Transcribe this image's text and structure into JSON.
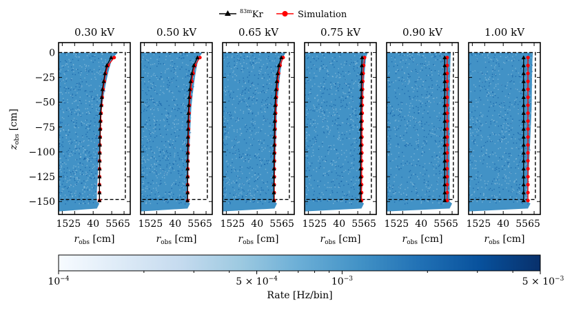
{
  "legend": {
    "items": [
      {
        "label": "83mKr",
        "label_super": "83m",
        "label_main": "Kr",
        "marker": "triangle",
        "color": "#000000"
      },
      {
        "label": "Simulation",
        "marker": "circle",
        "color": "#ff0000"
      }
    ]
  },
  "chart_data": {
    "type": "heatmap",
    "ylabel": "z_obs [cm]",
    "ylabel_main": "z",
    "ylabel_sub": "obs",
    "ylabel_unit": " [cm]",
    "xlabel": "r_obs [cm]",
    "xlabel_main": "r",
    "xlabel_sub": "obs",
    "xlabel_unit": " [cm]",
    "xticks": [
      15,
      25,
      40,
      55,
      65
    ],
    "xtick_labels": [
      "15",
      "25",
      "40",
      "55",
      "65"
    ],
    "xlim": [
      12,
      70
    ],
    "yticks": [
      0,
      -25,
      -50,
      -75,
      -100,
      -125,
      -150
    ],
    "ytick_labels": [
      "0",
      "−25",
      "−50",
      "−75",
      "−100",
      "−125",
      "−150"
    ],
    "ylim": [
      -163,
      10
    ],
    "panels": [
      {
        "title": "0.30 kV",
        "edge_top": 60,
        "edge_mid": 47,
        "edge_bottom": 43,
        "kr_r": [
          54.5,
          51,
          49.5,
          48.5,
          47.5,
          47,
          46.5,
          46,
          45.8,
          45.6,
          45.5,
          45.4,
          45.3,
          45.2,
          45.2,
          45.1,
          45.1,
          45.1,
          45.1
        ],
        "sim_r": [
          57,
          52,
          50,
          49,
          48,
          47.3,
          46.8,
          46.4,
          46.1,
          45.9,
          45.7,
          45.5,
          45.4,
          45.3,
          45.2,
          45.2,
          45.1,
          45.1,
          45.1
        ]
      },
      {
        "title": "0.50 kV",
        "edge_top": 62,
        "edge_mid": 53,
        "edge_bottom": 50,
        "kr_r": [
          58,
          55,
          53.5,
          52.5,
          51.8,
          51.3,
          51,
          50.7,
          50.5,
          50.4,
          50.3,
          50.2,
          50.1,
          50.1,
          50,
          50,
          50,
          50,
          50
        ],
        "sim_r": [
          60,
          56,
          54.5,
          53.5,
          52.6,
          52,
          51.5,
          51.2,
          51,
          50.8,
          50.6,
          50.5,
          50.4,
          50.3,
          50.2,
          50.2,
          50.1,
          50.1,
          50.1
        ]
      },
      {
        "title": "0.65 kV",
        "edge_top": 63,
        "edge_mid": 56,
        "edge_bottom": 54,
        "kr_r": [
          59.5,
          57.5,
          56.5,
          55.8,
          55.2,
          54.8,
          54.5,
          54.3,
          54.1,
          54,
          53.9,
          53.8,
          53.7,
          53.6,
          53.6,
          53.5,
          53.5,
          53.5,
          53.5
        ],
        "sim_r": [
          61,
          58.5,
          57.3,
          56.5,
          56,
          55.5,
          55.2,
          54.9,
          54.7,
          54.5,
          54.3,
          54.2,
          54.1,
          54,
          53.9,
          53.9,
          53.8,
          53.8,
          53.8
        ]
      },
      {
        "title": "0.75 kV",
        "edge_top": 63,
        "edge_mid": 59,
        "edge_bottom": 58,
        "kr_r": [
          58.5,
          58.3,
          58.1,
          58,
          57.9,
          57.8,
          57.7,
          57.6,
          57.6,
          57.5,
          57.5,
          57.4,
          57.4,
          57.3,
          57.3,
          57.3,
          57.2,
          57.2,
          57.2
        ],
        "sim_r": [
          60.5,
          59.8,
          59.4,
          59.1,
          58.9,
          58.8,
          58.7,
          58.6,
          58.5,
          58.4,
          58.4,
          58.3,
          58.3,
          58.2,
          58.2,
          58.2,
          58.1,
          58.1,
          58.1
        ]
      },
      {
        "title": "0.90 kV",
        "edge_top": 64,
        "edge_mid": 63,
        "edge_bottom": 63,
        "kr_r": [
          59,
          59,
          59,
          59,
          59,
          59,
          59,
          59,
          59,
          59,
          59,
          59,
          59,
          59,
          59,
          59,
          59,
          59,
          59
        ],
        "sim_r": [
          61,
          61,
          61,
          61,
          61,
          61,
          61,
          61,
          61,
          61,
          61,
          61,
          61,
          61,
          61,
          61,
          61,
          61,
          61
        ]
      },
      {
        "title": "1.00 kV",
        "edge_top": 64,
        "edge_mid": 63,
        "edge_bottom": 60,
        "kr_r": [
          56.5,
          56.5,
          56.5,
          56.5,
          56.5,
          56.5,
          56.5,
          56.5,
          56.5,
          56.5,
          56.5,
          56.5,
          56.5,
          56.5,
          56.5,
          56.5,
          56.5,
          56.5,
          56.5
        ],
        "sim_r": [
          60,
          60,
          60,
          60,
          60,
          60,
          60,
          60,
          60,
          60,
          60,
          60,
          60,
          60,
          60,
          60,
          60,
          60,
          60
        ]
      }
    ],
    "z_points": [
      -5,
      -13,
      -21,
      -29,
      -37,
      -45,
      -53,
      -61,
      -69,
      -77,
      -85,
      -93,
      -101,
      -109,
      -117,
      -125,
      -133,
      -141,
      -149
    ],
    "boundary": {
      "r_max": 66,
      "z_top": 0,
      "z_bottom": -148
    },
    "colorbar": {
      "label": "Rate [Hz/bin]",
      "scale": "log",
      "range": [
        0.0001,
        0.005
      ],
      "tick_labels": [
        {
          "value": 0.0001,
          "mant": "",
          "base": "10",
          "exp": "−4"
        },
        {
          "value": 0.0005,
          "mant": "5 × ",
          "base": "10",
          "exp": "−4"
        },
        {
          "value": 0.001,
          "mant": "",
          "base": "10",
          "exp": "−3"
        },
        {
          "value": 0.005,
          "mant": "5 × ",
          "base": "10",
          "exp": "−3"
        }
      ],
      "colormap": [
        "#f7fbff",
        "#deebf7",
        "#c6dbef",
        "#9ecae1",
        "#6baed6",
        "#4292c6",
        "#2171b5",
        "#08519c",
        "#08306b"
      ]
    }
  }
}
